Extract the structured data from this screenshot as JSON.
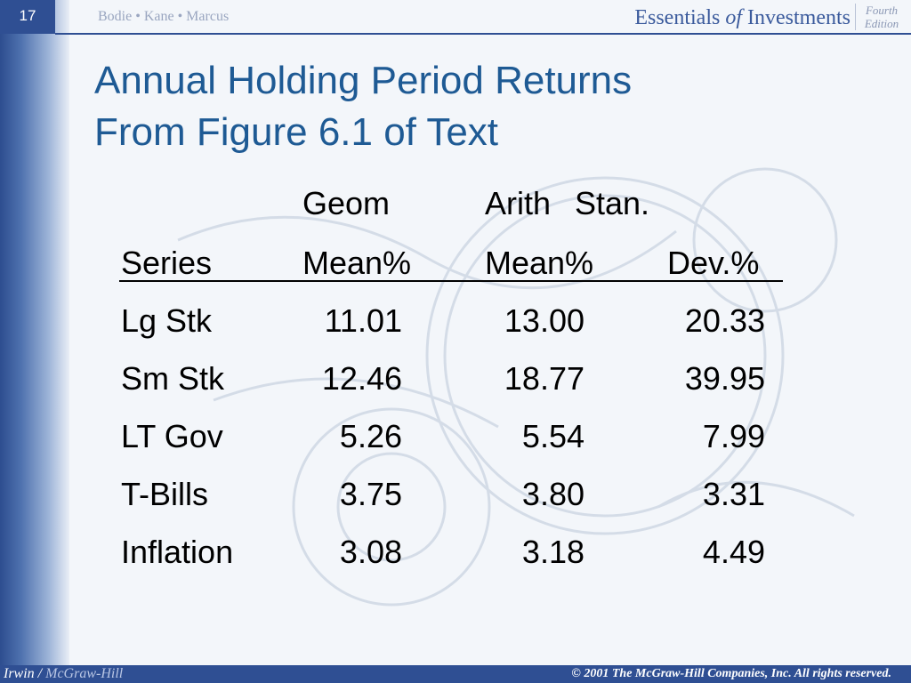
{
  "header": {
    "slide_number": "17",
    "authors": "Bodie • Kane • Marcus",
    "book_title_part1": "Essentials",
    "book_title_of": "of",
    "book_title_part2": "Investments",
    "edition_line1": "Fourth",
    "edition_line2": "Edition"
  },
  "slide": {
    "title_line1": "Annual Holding Period Returns",
    "title_line2": "From Figure 6.1 of Text"
  },
  "table": {
    "header_row1": [
      "",
      "Geom",
      "Arith",
      "Stan."
    ],
    "header_row2": [
      "Series",
      "Mean%",
      "Mean%",
      "Dev.%"
    ],
    "rows": [
      [
        "Lg Stk",
        "11.01",
        "13.00",
        "20.33"
      ],
      [
        "Sm Stk",
        "12.46",
        "18.77",
        "39.95"
      ],
      [
        "LT Gov",
        "5.26",
        "5.54",
        "7.99"
      ],
      [
        "T-Bills",
        "3.75",
        "3.80",
        "3.31"
      ],
      [
        "Inflation",
        "3.08",
        "3.18",
        "4.49"
      ]
    ]
  },
  "footer": {
    "publisher_left": "Irwin",
    "separator": "/",
    "publisher_right": "McGraw-Hill",
    "copyright": "© 2001 The McGraw-Hill Companies, Inc. All rights reserved."
  },
  "colors": {
    "title_blue": "#1e5a94",
    "band_blue": "#2f4f93"
  }
}
